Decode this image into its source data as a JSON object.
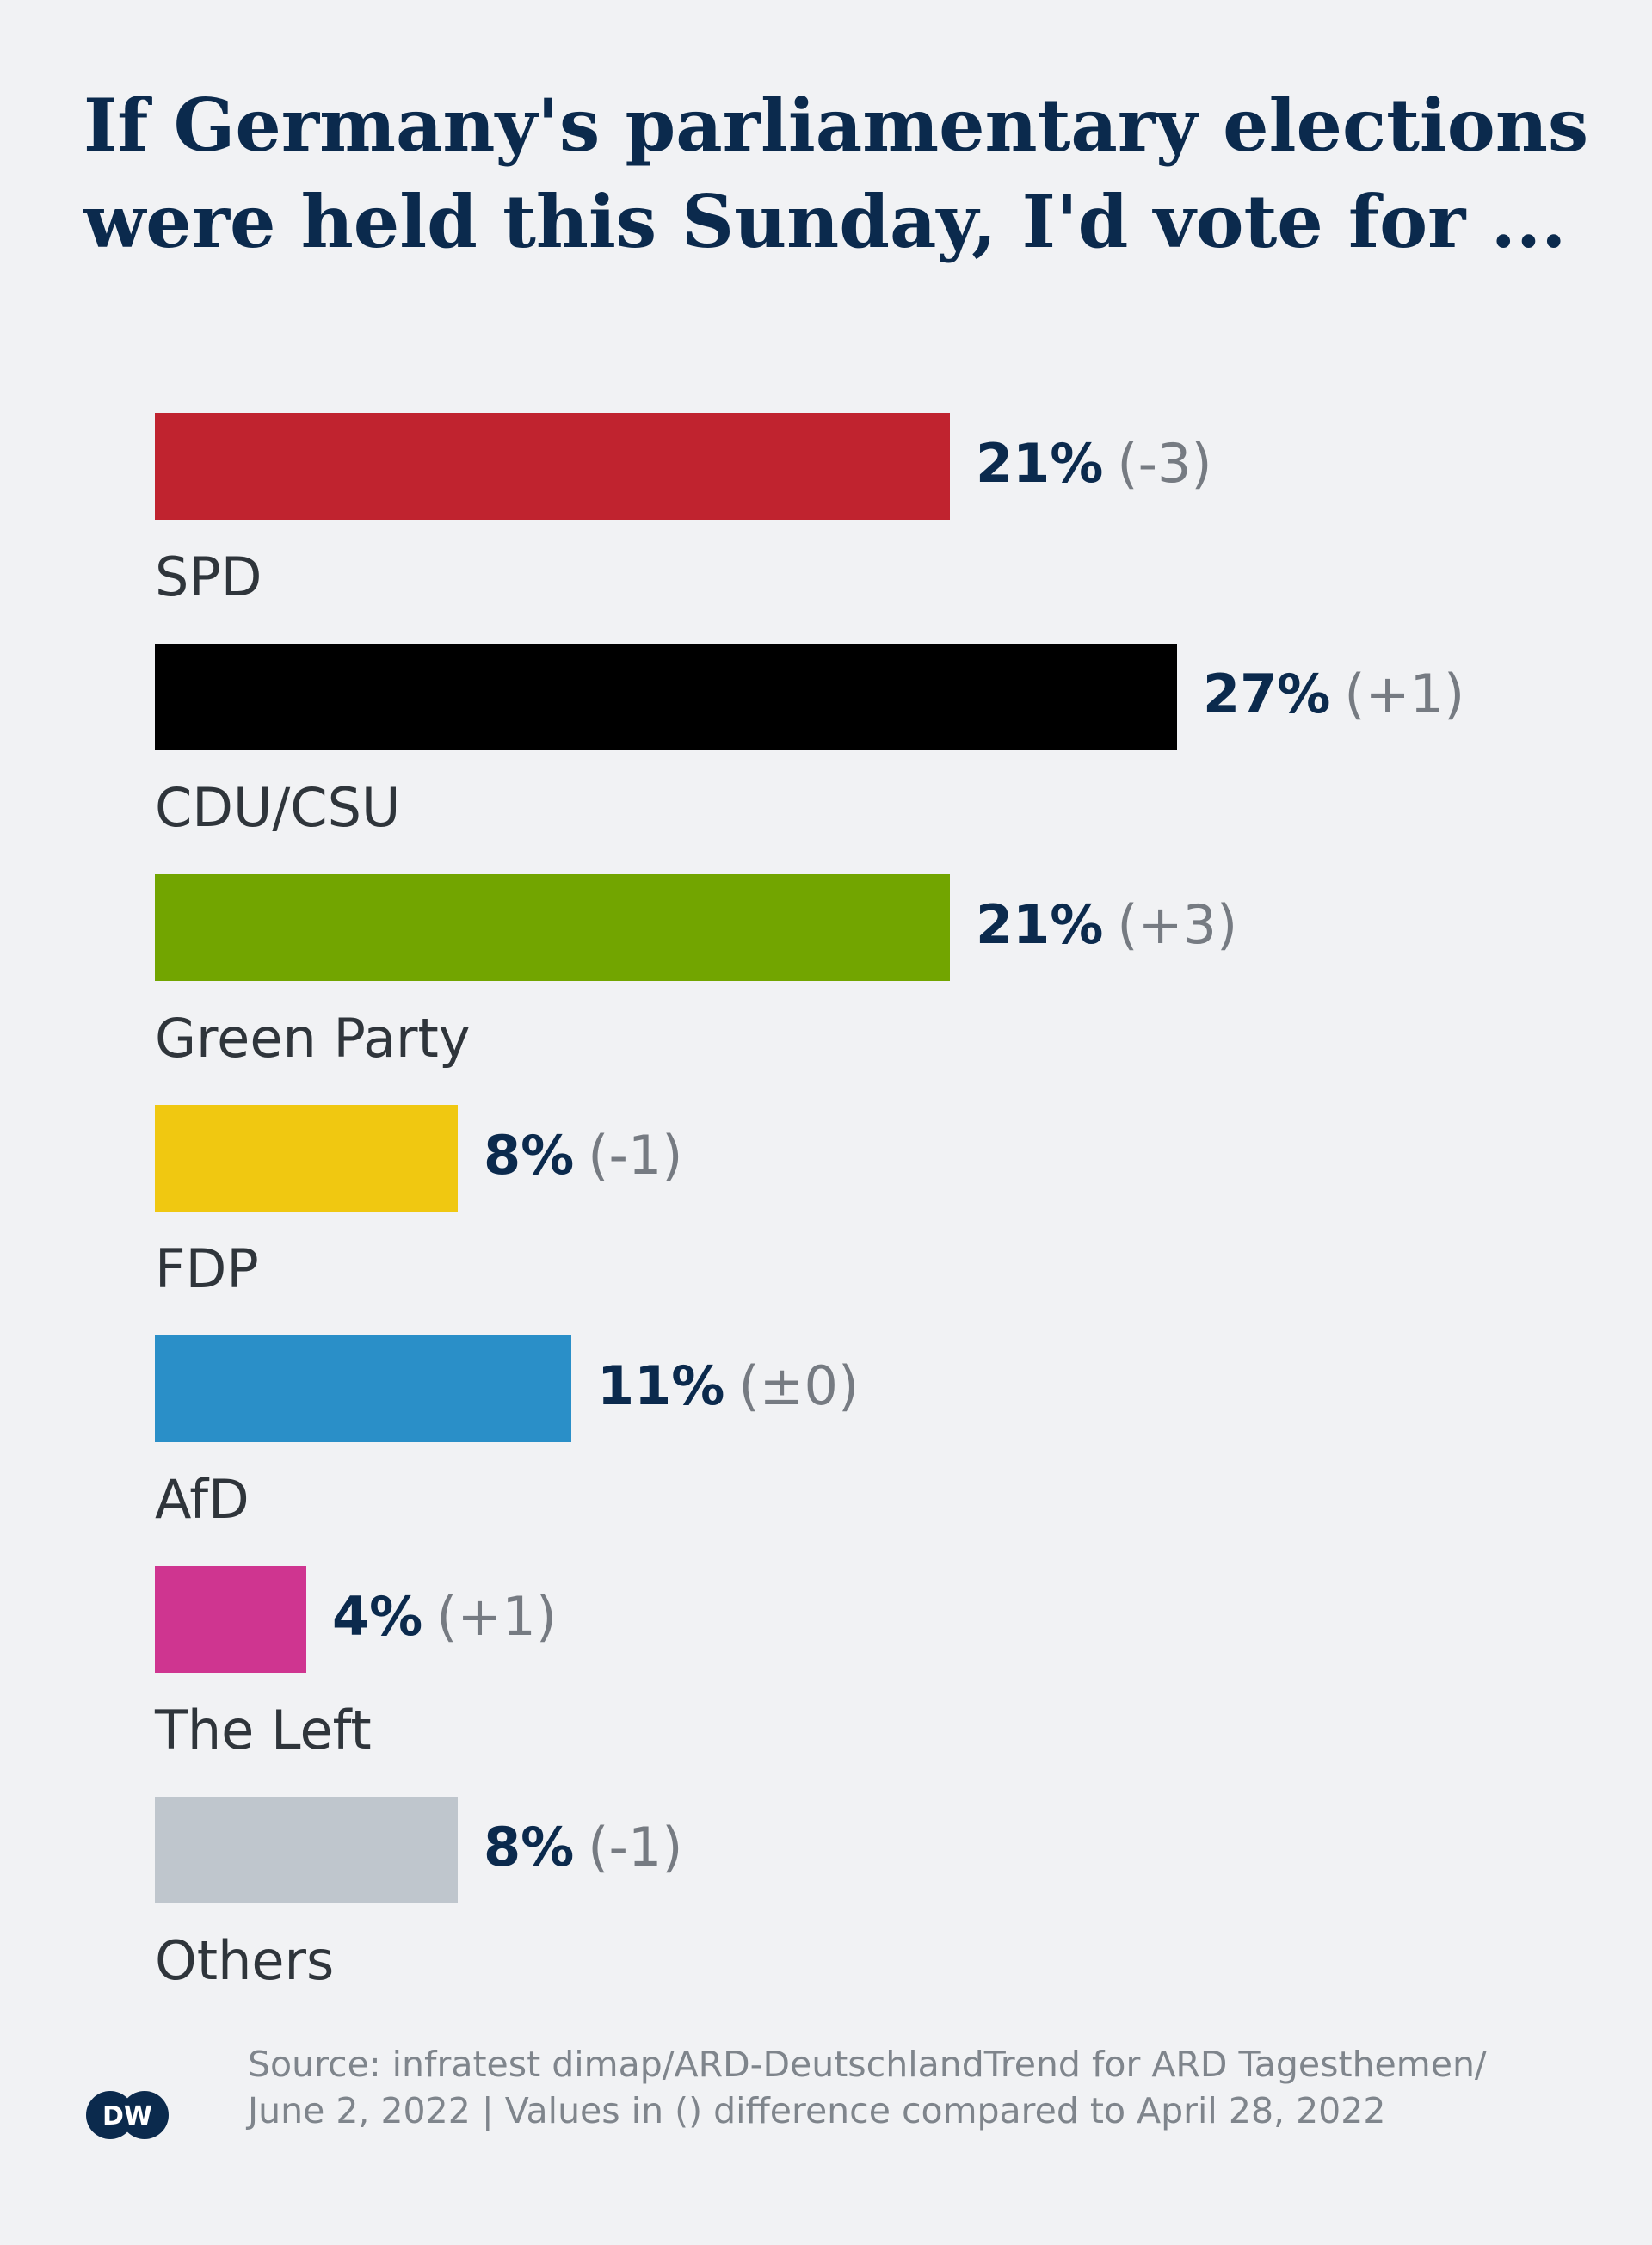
{
  "title_line1": "If Germany's parliamentary elections",
  "title_line2": "were held this Sunday, I'd vote for ...",
  "source_line1": "Source: infratest dimap/ARD-DeutschlandTrend for ARD Tagesthemen/",
  "source_line2": "June 2, 2022 | Values in () difference compared to April 28, 2022",
  "logo_text": "DW",
  "chart_data": {
    "type": "bar",
    "orientation": "horizontal",
    "categories": [
      "SPD",
      "CDU/CSU",
      "Green Party",
      "FDP",
      "AfD",
      "The Left",
      "Others"
    ],
    "values": [
      21,
      27,
      21,
      8,
      11,
      4,
      8
    ],
    "value_labels": [
      "21%",
      "27%",
      "21%",
      "8%",
      "11%",
      "4%",
      "8%"
    ],
    "changes": [
      "(-3)",
      "(+1)",
      "(+3)",
      "(-1)",
      "(±0)",
      "(+1)",
      "(-1)"
    ],
    "colors": [
      "#c0232f",
      "#000000",
      "#72a500",
      "#f0c811",
      "#2a8fc8",
      "#cf3590",
      "#bfc6cd"
    ],
    "unit": "%",
    "xlim": [
      0,
      27
    ],
    "grid": false,
    "legend": "none"
  }
}
